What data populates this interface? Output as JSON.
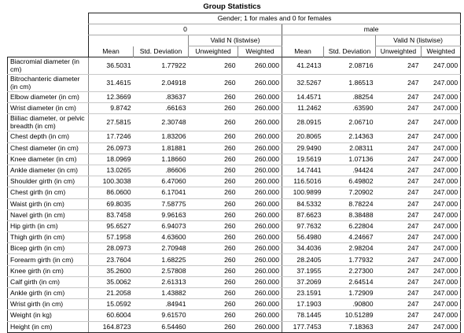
{
  "title": "Group Statistics",
  "header": {
    "grouping_variable": "Gender; 1 for males and 0 for females",
    "groups": [
      "0",
      "male"
    ],
    "valid_n_label": "Valid N (listwise)",
    "columns": {
      "mean": "Mean",
      "std_deviation": "Std. Deviation",
      "unweighted": "Unweighted",
      "weighted": "Weighted"
    }
  },
  "rows": [
    {
      "label": "Biacromial diameter (in cm)",
      "g0": [
        "36.5031",
        "1.77922",
        "260",
        "260.000"
      ],
      "g1": [
        "41.2413",
        "2.08716",
        "247",
        "247.000"
      ]
    },
    {
      "label": "Bitrochanteric diameter (in cm)",
      "g0": [
        "31.4615",
        "2.04918",
        "260",
        "260.000"
      ],
      "g1": [
        "32.5267",
        "1.86513",
        "247",
        "247.000"
      ]
    },
    {
      "label": "Elbow diameter (in cm)",
      "g0": [
        "12.3669",
        ".83637",
        "260",
        "260.000"
      ],
      "g1": [
        "14.4571",
        ".88254",
        "247",
        "247.000"
      ]
    },
    {
      "label": "Wrist diameter (in cm)",
      "g0": [
        "9.8742",
        ".66163",
        "260",
        "260.000"
      ],
      "g1": [
        "11.2462",
        ".63590",
        "247",
        "247.000"
      ]
    },
    {
      "label": "Biiliac diameter, or pelvic breadth (in cm)",
      "g0": [
        "27.5815",
        "2.30748",
        "260",
        "260.000"
      ],
      "g1": [
        "28.0915",
        "2.06710",
        "247",
        "247.000"
      ]
    },
    {
      "label": "Chest depth (in cm)",
      "g0": [
        "17.7246",
        "1.83206",
        "260",
        "260.000"
      ],
      "g1": [
        "20.8065",
        "2.14363",
        "247",
        "247.000"
      ]
    },
    {
      "label": "Chest diameter (in cm)",
      "g0": [
        "26.0973",
        "1.81881",
        "260",
        "260.000"
      ],
      "g1": [
        "29.9490",
        "2.08311",
        "247",
        "247.000"
      ]
    },
    {
      "label": "Knee diameter (in cm)",
      "g0": [
        "18.0969",
        "1.18660",
        "260",
        "260.000"
      ],
      "g1": [
        "19.5619",
        "1.07136",
        "247",
        "247.000"
      ]
    },
    {
      "label": "Ankle diameter (in cm)",
      "g0": [
        "13.0265",
        ".86606",
        "260",
        "260.000"
      ],
      "g1": [
        "14.7441",
        ".94424",
        "247",
        "247.000"
      ]
    },
    {
      "label": "Shoulder girth (in cm)",
      "g0": [
        "100.3038",
        "6.47060",
        "260",
        "260.000"
      ],
      "g1": [
        "116.5016",
        "6.49802",
        "247",
        "247.000"
      ]
    },
    {
      "label": "Chest girth (in cm)",
      "g0": [
        "86.0600",
        "6.17041",
        "260",
        "260.000"
      ],
      "g1": [
        "100.9899",
        "7.20902",
        "247",
        "247.000"
      ]
    },
    {
      "label": "Waist girth (in cm)",
      "g0": [
        "69.8035",
        "7.58775",
        "260",
        "260.000"
      ],
      "g1": [
        "84.5332",
        "8.78224",
        "247",
        "247.000"
      ]
    },
    {
      "label": "Navel girth (in cm)",
      "g0": [
        "83.7458",
        "9.96163",
        "260",
        "260.000"
      ],
      "g1": [
        "87.6623",
        "8.38488",
        "247",
        "247.000"
      ]
    },
    {
      "label": "Hip girth (in cm)",
      "g0": [
        "95.6527",
        "6.94073",
        "260",
        "260.000"
      ],
      "g1": [
        "97.7632",
        "6.22804",
        "247",
        "247.000"
      ]
    },
    {
      "label": "Thigh girth (in cm)",
      "g0": [
        "57.1958",
        "4.63600",
        "260",
        "260.000"
      ],
      "g1": [
        "56.4980",
        "4.24667",
        "247",
        "247.000"
      ]
    },
    {
      "label": "Bicep girth (in cm)",
      "g0": [
        "28.0973",
        "2.70948",
        "260",
        "260.000"
      ],
      "g1": [
        "34.4036",
        "2.98204",
        "247",
        "247.000"
      ]
    },
    {
      "label": "Forearm girth (in cm)",
      "g0": [
        "23.7604",
        "1.68225",
        "260",
        "260.000"
      ],
      "g1": [
        "28.2405",
        "1.77932",
        "247",
        "247.000"
      ]
    },
    {
      "label": "Knee girth (in cm)",
      "g0": [
        "35.2600",
        "2.57808",
        "260",
        "260.000"
      ],
      "g1": [
        "37.1955",
        "2.27300",
        "247",
        "247.000"
      ]
    },
    {
      "label": "Calf girth (in cm)",
      "g0": [
        "35.0062",
        "2.61313",
        "260",
        "260.000"
      ],
      "g1": [
        "37.2069",
        "2.64514",
        "247",
        "247.000"
      ]
    },
    {
      "label": "Ankle girth (in cm)",
      "g0": [
        "21.2058",
        "1.43882",
        "260",
        "260.000"
      ],
      "g1": [
        "23.1591",
        "1.72909",
        "247",
        "247.000"
      ]
    },
    {
      "label": "Wrist girth (in cm)",
      "g0": [
        "15.0592",
        ".84941",
        "260",
        "260.000"
      ],
      "g1": [
        "17.1903",
        ".90800",
        "247",
        "247.000"
      ]
    },
    {
      "label": "Weight (in kg)",
      "g0": [
        "60.6004",
        "9.61570",
        "260",
        "260.000"
      ],
      "g1": [
        "78.1445",
        "10.51289",
        "247",
        "247.000"
      ]
    },
    {
      "label": "Height (in cm)",
      "g0": [
        "164.8723",
        "6.54460",
        "260",
        "260.000"
      ],
      "g1": [
        "177.7453",
        "7.18363",
        "247",
        "247.000"
      ]
    }
  ]
}
